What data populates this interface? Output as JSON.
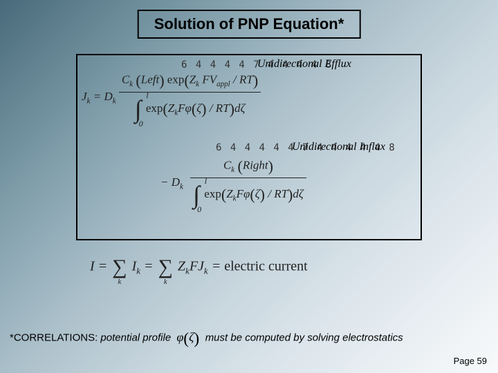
{
  "title": "Solution of PNP Equation*",
  "garble1": "6 4 4 4 4 7 4 4 4 4 8",
  "garble2": "6 4 4 4 4 4 7 4 4 4 4 4 8",
  "labels": {
    "efflux": "Unidirectional Efflux",
    "influx": "Unidirectional Influx"
  },
  "efflux": {
    "lhs": "J",
    "lhs_sub": "k",
    "eq": " = ",
    "D": "D",
    "D_sub": "k",
    "num_C": "C",
    "num_C_sub": "k",
    "num_side": "Left",
    "num_exp": "exp",
    "num_Z": "Z",
    "num_Z_sub": "k",
    "num_FV": " FV",
    "num_FV_sub": "appl",
    "num_over": " / RT",
    "den_int_lo": "0",
    "den_int_up": "l",
    "den_exp": "exp",
    "den_Z": "Z",
    "den_Z_sub": "k",
    "den_Fphi": "Fφ",
    "den_zeta": "ζ",
    "den_over": " / RT",
    "den_dzeta": "dζ"
  },
  "influx": {
    "minus": "− ",
    "D": "D",
    "D_sub": "k",
    "num_C": "C",
    "num_C_sub": "k",
    "num_side": "Right",
    "den_int_lo": "0",
    "den_int_up": "l",
    "den_exp": "exp",
    "den_Z": "Z",
    "den_Z_sub": "k",
    "den_Fphi": "Fφ",
    "den_zeta": "ζ",
    "den_over": " / RT",
    "den_dzeta": "dζ"
  },
  "current": {
    "I": "I",
    "eq1": " = ",
    "sum_sub": "k",
    "Ik": "I",
    "Ik_sub": "k",
    "eq2": " = ",
    "Z": "Z",
    "Z_sub": "k",
    "FJ": "FJ",
    "FJ_sub": "k",
    "eq3": " = ",
    "rhs": "electric current"
  },
  "footnote": {
    "prefix": "*CORRELATIONS:  ",
    "mid": "potential profile ",
    "phi": "φ",
    "phi_arg": "ζ",
    "suffix": "  must be computed by solving electrostatics"
  },
  "pagenum": "Page 59",
  "colors": {
    "text": "#000000",
    "formula": "#222222",
    "border": "#000000"
  }
}
